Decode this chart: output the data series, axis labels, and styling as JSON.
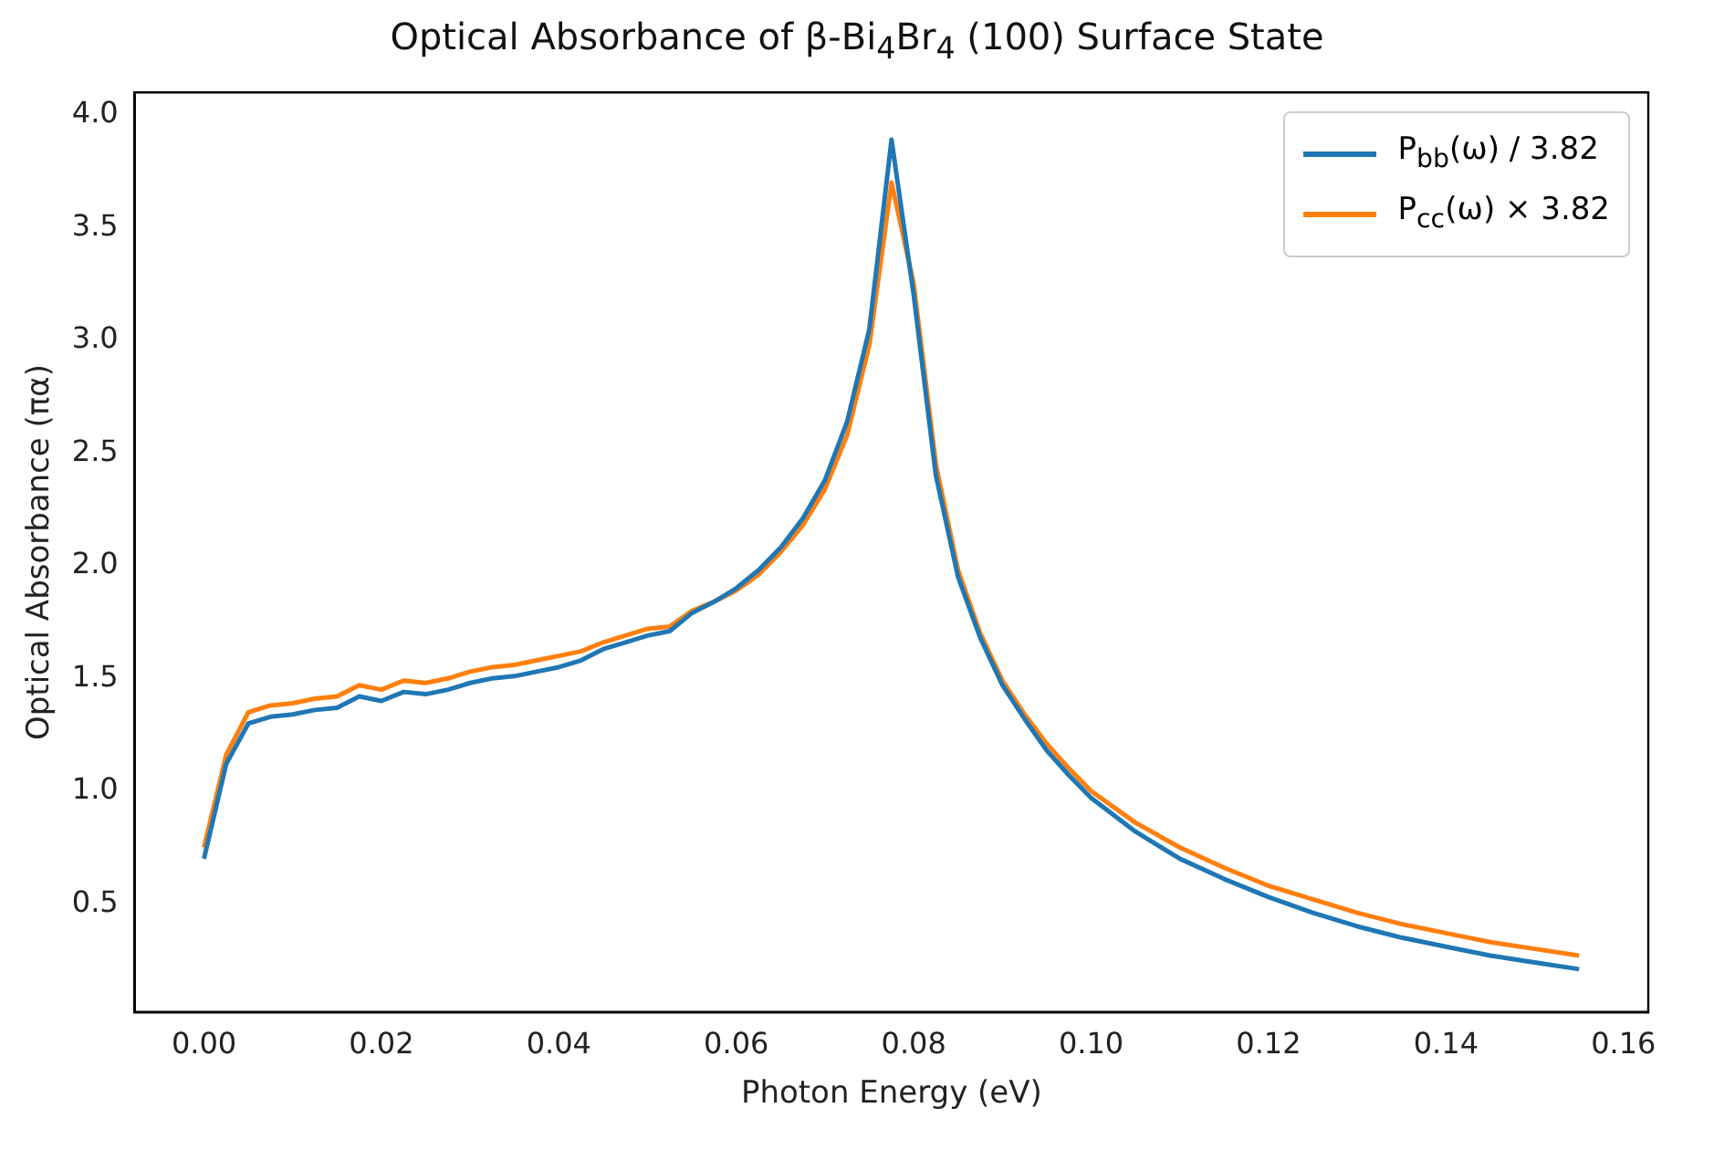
{
  "chart_data": {
    "type": "line",
    "title": "Optical Absorbance of β-Bi$_{4}$Br$_{4}$ (100) Surface State",
    "xlabel": "Photon Energy (eV)",
    "ylabel": "Optical Absorbance (πα)",
    "x": [
      0,
      0.0025,
      0.005,
      0.0075,
      0.01,
      0.0125,
      0.015,
      0.0175,
      0.02,
      0.0225,
      0.025,
      0.0275,
      0.03,
      0.0325,
      0.035,
      0.0375,
      0.04,
      0.0425,
      0.045,
      0.0475,
      0.05,
      0.0525,
      0.055,
      0.0575,
      0.06,
      0.0625,
      0.065,
      0.0675,
      0.07,
      0.0725,
      0.075,
      0.0775,
      0.08,
      0.0825,
      0.085,
      0.0875,
      0.09,
      0.0925,
      0.095,
      0.0975,
      0.1,
      0.105,
      0.11,
      0.115,
      0.12,
      0.125,
      0.13,
      0.135,
      0.14,
      0.145,
      0.15,
      0.155
    ],
    "series": [
      {
        "name": "P$_{bb}$(ω) / 3.82",
        "color": "#1f77b4",
        "values": [
          0.7,
          1.12,
          1.3,
          1.33,
          1.34,
          1.36,
          1.37,
          1.42,
          1.4,
          1.44,
          1.43,
          1.45,
          1.48,
          1.5,
          1.51,
          1.53,
          1.55,
          1.58,
          1.63,
          1.66,
          1.69,
          1.71,
          1.79,
          1.84,
          1.9,
          1.98,
          2.08,
          2.21,
          2.38,
          2.64,
          3.05,
          3.89,
          3.2,
          2.4,
          1.95,
          1.68,
          1.47,
          1.32,
          1.18,
          1.07,
          0.97,
          0.82,
          0.7,
          0.61,
          0.53,
          0.46,
          0.4,
          0.35,
          0.31,
          0.27,
          0.24,
          0.21
        ]
      },
      {
        "name": "P$_{cc}$(ω) × 3.82",
        "color": "#ff7f0e",
        "values": [
          0.75,
          1.16,
          1.35,
          1.38,
          1.39,
          1.41,
          1.42,
          1.47,
          1.45,
          1.49,
          1.48,
          1.5,
          1.53,
          1.55,
          1.56,
          1.58,
          1.6,
          1.62,
          1.66,
          1.69,
          1.72,
          1.73,
          1.8,
          1.84,
          1.89,
          1.96,
          2.06,
          2.18,
          2.34,
          2.58,
          2.98,
          3.7,
          3.25,
          2.45,
          1.98,
          1.7,
          1.49,
          1.34,
          1.21,
          1.1,
          1.0,
          0.86,
          0.75,
          0.66,
          0.58,
          0.52,
          0.46,
          0.41,
          0.37,
          0.33,
          0.3,
          0.27
        ]
      }
    ],
    "xlim": [
      -0.0078,
      0.1628
    ],
    "ylim": [
      0.02,
      4.1
    ],
    "xticks": [
      {
        "value": 0,
        "label": "0.00"
      },
      {
        "value": 0.02,
        "label": "0.02"
      },
      {
        "value": 0.04,
        "label": "0.04"
      },
      {
        "value": 0.06,
        "label": "0.06"
      },
      {
        "value": 0.08,
        "label": "0.08"
      },
      {
        "value": 0.1,
        "label": "0.10"
      },
      {
        "value": 0.12,
        "label": "0.12"
      },
      {
        "value": 0.14,
        "label": "0.14"
      },
      {
        "value": 0.16,
        "label": "0.16"
      }
    ],
    "yticks": [
      {
        "value": 0.5,
        "label": "0.5"
      },
      {
        "value": 1,
        "label": "1.0"
      },
      {
        "value": 1.5,
        "label": "1.5"
      },
      {
        "value": 2,
        "label": "2.0"
      },
      {
        "value": 2.5,
        "label": "2.5"
      },
      {
        "value": 3,
        "label": "3.0"
      },
      {
        "value": 3.5,
        "label": "3.5"
      },
      {
        "value": 4,
        "label": "4.0"
      }
    ],
    "grid": false,
    "legend": "top right",
    "marker": "none",
    "line_style": "solid"
  }
}
